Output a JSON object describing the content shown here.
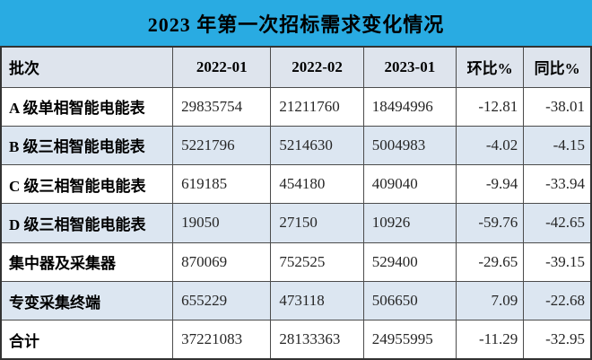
{
  "title": "2023 年第一次招标需求变化情况",
  "chart_data": {
    "type": "table",
    "title": "2023 年第一次招标需求变化情况",
    "columns": [
      "批次",
      "2022-01",
      "2022-02",
      "2023-01",
      "环比%",
      "同比%"
    ],
    "rows": [
      [
        "A 级单相智能电能表",
        "29835754",
        "21211760",
        "18494996",
        "-12.81",
        "-38.01"
      ],
      [
        "B 级三相智能电能表",
        "5221796",
        "5214630",
        "5004983",
        "-4.02",
        "-4.15"
      ],
      [
        "C 级三相智能电能表",
        "619185",
        "454180",
        "409040",
        "-9.94",
        "-33.94"
      ],
      [
        "D 级三相智能电能表",
        "19050",
        "27150",
        "10926",
        "-59.76",
        "-42.65"
      ],
      [
        "集中器及采集器",
        "870069",
        "752525",
        "529400",
        "-29.65",
        "-39.15"
      ],
      [
        "专变采集终端",
        "655229",
        "473118",
        "506650",
        "7.09",
        "-22.68"
      ],
      [
        "合计",
        "37221083",
        "28133363",
        "24955995",
        "-11.29",
        "-32.95"
      ]
    ]
  },
  "colors": {
    "title_bg": "#29abe2",
    "header_bg": "#dee4ed",
    "alt_row_bg": "#dce6f1",
    "border": "#4c4c4c",
    "text": "#000000",
    "number_text": "#262626"
  }
}
